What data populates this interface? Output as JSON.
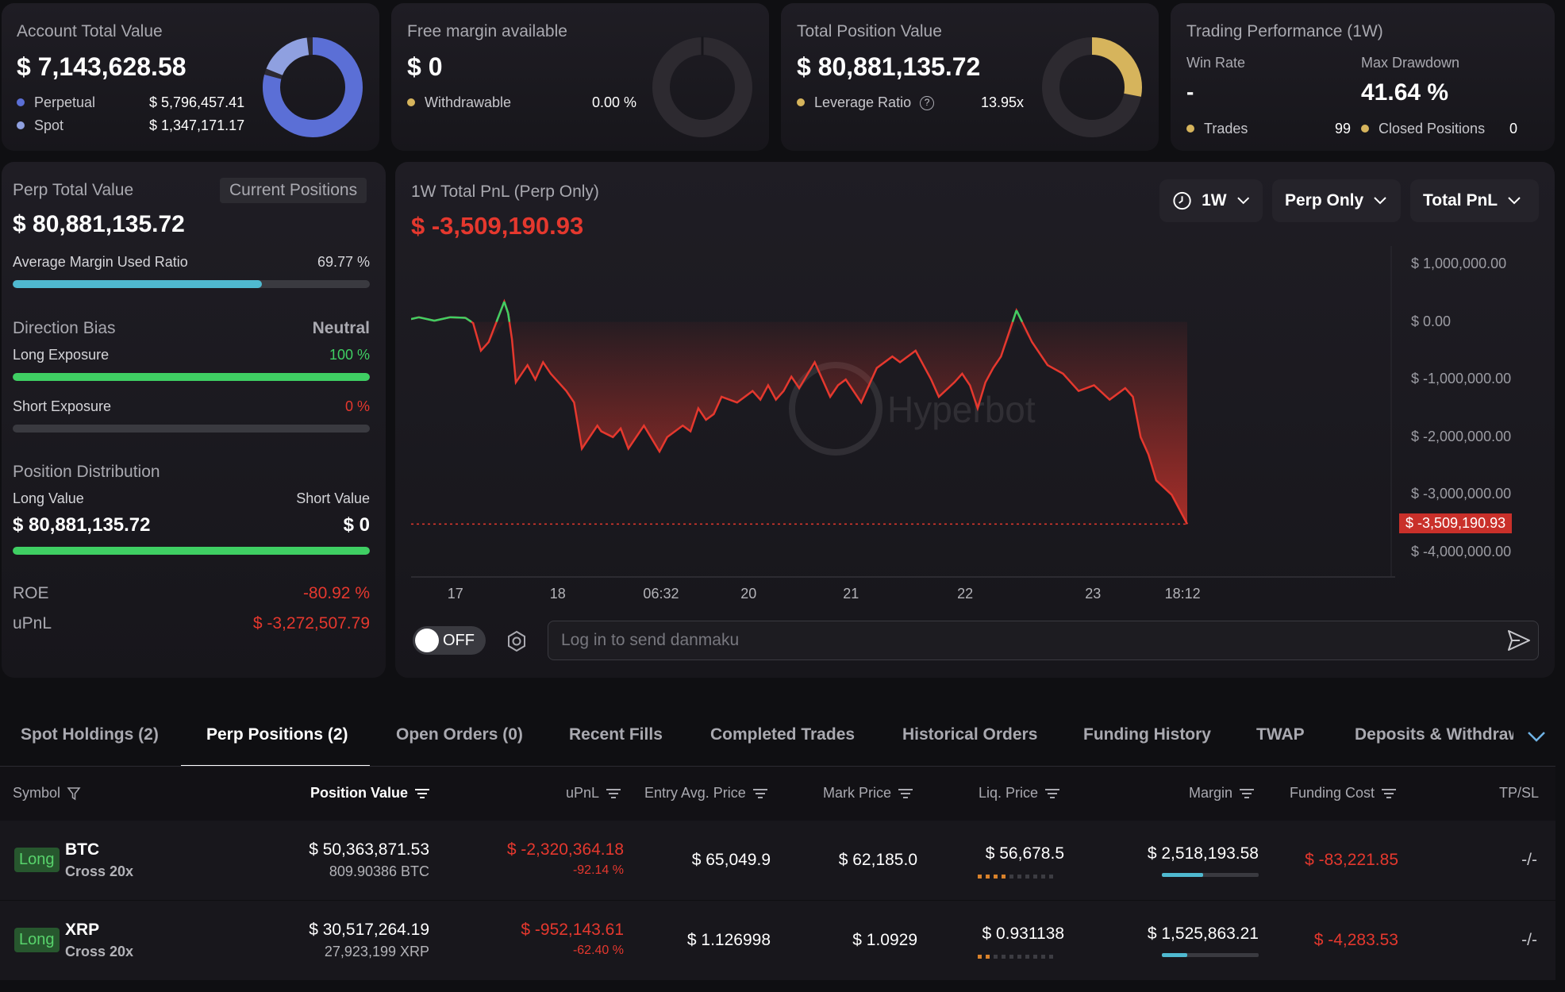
{
  "cards": {
    "account": {
      "title": "Account Total Value",
      "value": "$ 7,143,628.58",
      "perp_label": "Perpetual",
      "perp_value": "$ 5,796,457.41",
      "spot_label": "Spot",
      "spot_value": "$ 1,347,171.17",
      "donut_fraction": 0.81,
      "color": "#5b6fd6"
    },
    "margin": {
      "title": "Free margin available",
      "value": "$ 0",
      "withdraw_label": "Withdrawable",
      "withdraw_value": "0.00 %",
      "donut_fraction": 0.0
    },
    "position": {
      "title": "Total Position Value",
      "value": "$ 80,881,135.72",
      "lev_label": "Leverage Ratio",
      "lev_value": "13.95x",
      "donut_fraction": 0.28,
      "color": "#d6b45c"
    },
    "performance": {
      "title": "Trading Performance (1W)",
      "winrate_label": "Win Rate",
      "winrate_value": "-",
      "drawdown_label": "Max Drawdown",
      "drawdown_value": "41.64 %",
      "trades_label": "Trades",
      "trades_value": "99",
      "closed_label": "Closed Positions",
      "closed_value": "0"
    }
  },
  "left": {
    "perp_title": "Perp Total Value",
    "current_positions": "Current Positions",
    "perp_value": "$ 80,881,135.72",
    "margin_ratio_label": "Average Margin Used Ratio",
    "margin_ratio_value": "69.77 %",
    "margin_ratio_fraction": 0.6977,
    "direction_label": "Direction Bias",
    "direction_value": "Neutral",
    "long_exp_label": "Long Exposure",
    "long_exp_value": "100 %",
    "long_exp_fraction": 1.0,
    "short_exp_label": "Short Exposure",
    "short_exp_value": "0 %",
    "short_exp_fraction": 0.0,
    "distribution_label": "Position Distribution",
    "long_value_label": "Long Value",
    "short_value_label": "Short Value",
    "long_value": "$ 80,881,135.72",
    "short_value": "$ 0",
    "long_value_fraction": 1.0,
    "roe_label": "ROE",
    "roe_value": "-80.92 %",
    "upnl_label": "uPnL",
    "upnl_value": "$ -3,272,507.79"
  },
  "chart_panel": {
    "title": "1W Total PnL (Perp Only)",
    "value": "$ -3,509,190.93",
    "dropdowns": [
      "1W",
      "Perp Only",
      "Total PnL"
    ],
    "watermark": "Hyperbot",
    "current_label": "$ -3,509,190.93",
    "toggle_label": "OFF",
    "danmaku_placeholder": "Log in to send danmaku"
  },
  "chart_data": {
    "type": "line",
    "y_ticks": [
      "$ 1,000,000.00",
      "$ 0.00",
      "$ -1,000,000.00",
      "$ -2,000,000.00",
      "$ -3,000,000.00",
      "$ -4,000,000.00"
    ],
    "y_tick_values": [
      1000000,
      0,
      -1000000,
      -2000000,
      -3000000,
      -4000000
    ],
    "x_ticks": [
      "17",
      "18",
      "06:32",
      "20",
      "21",
      "22",
      "23",
      "18:12"
    ],
    "x_tick_positions": [
      0.045,
      0.149,
      0.254,
      0.343,
      0.447,
      0.563,
      0.693,
      0.784
    ],
    "ylim": [
      -4000000,
      1000000
    ],
    "x": [
      0,
      0.01,
      0.03,
      0.05,
      0.07,
      0.08,
      0.09,
      0.1,
      0.12,
      0.125,
      0.13,
      0.135,
      0.15,
      0.16,
      0.17,
      0.18,
      0.2,
      0.21,
      0.22,
      0.24,
      0.245,
      0.26,
      0.27,
      0.28,
      0.3,
      0.32,
      0.33,
      0.35,
      0.36,
      0.37,
      0.38,
      0.39,
      0.4,
      0.42,
      0.44,
      0.45,
      0.46,
      0.47,
      0.48,
      0.49,
      0.5,
      0.52,
      0.54,
      0.55,
      0.56,
      0.58,
      0.6,
      0.62,
      0.63,
      0.65,
      0.67,
      0.68,
      0.7,
      0.71,
      0.72,
      0.73,
      0.74,
      0.75,
      0.76,
      0.78,
      0.8,
      0.82,
      0.84,
      0.86,
      0.88,
      0.9,
      0.92,
      0.93,
      0.94,
      0.95,
      0.96,
      0.98,
      1.0
    ],
    "y": [
      50000,
      80000,
      20000,
      80000,
      70000,
      -20000,
      -500000,
      -350000,
      350000,
      150000,
      -300000,
      -1050000,
      -750000,
      -1000000,
      -700000,
      -900000,
      -1200000,
      -1400000,
      -2200000,
      -1800000,
      -1900000,
      -2000000,
      -1850000,
      -2200000,
      -1800000,
      -2250000,
      -2000000,
      -1800000,
      -1900000,
      -1500000,
      -1700000,
      -1600000,
      -1300000,
      -1400000,
      -1200000,
      -1350000,
      -1100000,
      -1350000,
      -1200000,
      -950000,
      -1150000,
      -700000,
      -1300000,
      -1100000,
      -1000000,
      -1400000,
      -800000,
      -600000,
      -700000,
      -500000,
      -1000000,
      -1300000,
      -1050000,
      -900000,
      -1100000,
      -1500000,
      -1050000,
      -800000,
      -600000,
      200000,
      -350000,
      -750000,
      -900000,
      -1200000,
      -1100000,
      -1350000,
      -1150000,
      -1300000,
      -2000000,
      -2300000,
      -2750000,
      -3000000,
      -3509190.93
    ],
    "positive_color": "#3fcf63",
    "negative_color": "#e5382e"
  },
  "tabs": [
    "Spot Holdings (2)",
    "Perp Positions (2)",
    "Open Orders (0)",
    "Recent Fills",
    "Completed Trades",
    "Historical Orders",
    "Funding History",
    "TWAP",
    "Deposits & Withdraw"
  ],
  "active_tab": "Perp Positions (2)",
  "table": {
    "headers": [
      "Symbol",
      "Position Value",
      "uPnL",
      "Entry Avg. Price",
      "Mark Price",
      "Liq. Price",
      "Margin",
      "Funding Cost",
      "TP/SL"
    ],
    "rows": [
      {
        "side": "Long",
        "symbol": "BTC",
        "mode": "Cross 20x",
        "position_value": "$ 50,363,871.53",
        "position_size": "809.90386 BTC",
        "upnl": "$ -2,320,364.18",
        "upnl_pct": "-92.14 %",
        "entry": "$ 65,049.9",
        "mark": "$ 62,185.0",
        "liq": "$ 56,678.5",
        "liq_level": 4,
        "margin": "$ 2,518,193.58",
        "margin_fraction": 0.43,
        "funding": "$ -83,221.85",
        "tpsl": "-/-"
      },
      {
        "side": "Long",
        "symbol": "XRP",
        "mode": "Cross 20x",
        "position_value": "$ 30,517,264.19",
        "position_size": "27,923,199 XRP",
        "upnl": "$ -952,143.61",
        "upnl_pct": "-62.40 %",
        "entry": "$ 1.126998",
        "mark": "$ 1.0929",
        "liq": "$ 0.931138",
        "liq_level": 2,
        "margin": "$ 1,525,863.21",
        "margin_fraction": 0.26,
        "funding": "$ -4,283.53",
        "tpsl": "-/-"
      }
    ]
  }
}
